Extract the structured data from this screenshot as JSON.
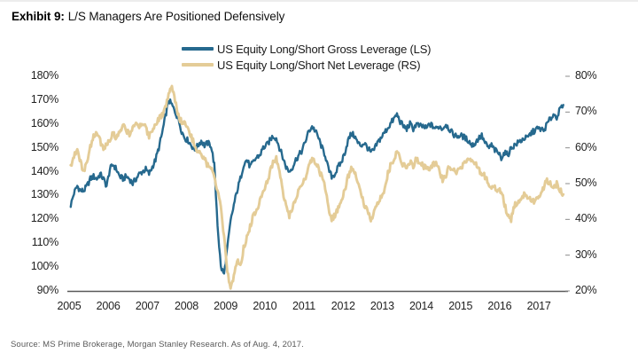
{
  "header": {
    "exhibit_label": "Exhibit 9:",
    "title": "L/S Managers Are Positioned Defensively"
  },
  "legend": [
    {
      "label": "US Equity Long/Short Gross Leverage (LS)",
      "color": "#26698E"
    },
    {
      "label": "US Equity Long/Short Net Leverage (RS)",
      "color": "#E4CC97"
    }
  ],
  "source": "Source: MS Prime Brokerage, Morgan Stanley Research. As of Aug. 4, 2017.",
  "colors": {
    "gross_line": "#26698E",
    "net_line": "#E4CC97",
    "axis_line": "#595959",
    "tick_text": "#1f1f1f"
  },
  "chart_data": {
    "type": "line",
    "title": "L/S Managers Are Positioned Defensively",
    "x_start_year": 2005,
    "x_step_months": 1,
    "x_end_label": "Aug 2017",
    "x_ticks": [
      "2005",
      "2006",
      "2007",
      "2008",
      "2009",
      "2010",
      "2011",
      "2012",
      "2013",
      "2014",
      "2015",
      "2016",
      "2017"
    ],
    "left_axis": {
      "label": "Gross Leverage (LS)",
      "ticks": [
        "180%",
        "170%",
        "160%",
        "150%",
        "140%",
        "130%",
        "120%",
        "110%",
        "100%",
        "90%"
      ],
      "min": 90,
      "max": 180
    },
    "right_axis": {
      "label": "Net Leverage (RS)",
      "ticks": [
        "80%",
        "70%",
        "60%",
        "50%",
        "40%",
        "30%",
        "20%"
      ],
      "min": 20,
      "max": 80
    },
    "grid": false,
    "legend_position": "top-center",
    "series": [
      {
        "name": "US Equity Long/Short Gross Leverage (LS)",
        "axis": "left",
        "color": "#26698E",
        "values": [
          126,
          131,
          134,
          132,
          132,
          134,
          137,
          138,
          137,
          139,
          137,
          134,
          141,
          143,
          141,
          138,
          137,
          138,
          137,
          135,
          137,
          139,
          140,
          141,
          139,
          142,
          145,
          150,
          156,
          163,
          170,
          168,
          165,
          162,
          157,
          154,
          153,
          151,
          149,
          151,
          153,
          151,
          152,
          151,
          143,
          118,
          100,
          97,
          108,
          119,
          126,
          132,
          137,
          143,
          145,
          142,
          144,
          146,
          147,
          150,
          151,
          153,
          155,
          154,
          150,
          146,
          142,
          140,
          142,
          145,
          147,
          149,
          153,
          157,
          159,
          157,
          154,
          150,
          147,
          141,
          138,
          139,
          142,
          144,
          148,
          153,
          156,
          155,
          152,
          151,
          152,
          150,
          148,
          149,
          152,
          154,
          156,
          158,
          160,
          162,
          164,
          161,
          159,
          158,
          160,
          158,
          160,
          159,
          159,
          158,
          160,
          159,
          158,
          159,
          158,
          160,
          158,
          156,
          155,
          155,
          155,
          154,
          153,
          151,
          152,
          154,
          155,
          152,
          150,
          151,
          149,
          148,
          146,
          148,
          147,
          150,
          151,
          152,
          153,
          154,
          154,
          156,
          157,
          158,
          158,
          157,
          160,
          162,
          164,
          163,
          166,
          168
        ]
      },
      {
        "name": "US Equity Long/Short Net Leverage (RS)",
        "axis": "right",
        "color": "#E4CC97",
        "values": [
          55,
          58,
          60,
          56,
          53,
          56,
          60,
          63,
          64,
          62,
          60,
          61,
          62,
          64,
          63,
          64,
          66,
          65,
          64,
          66,
          67,
          66,
          67,
          66,
          63,
          65,
          67,
          68,
          69,
          71,
          75,
          77,
          73,
          69,
          67,
          67,
          66,
          63,
          61,
          59,
          58,
          57,
          55,
          54,
          52,
          48,
          43,
          35,
          25,
          21,
          24,
          29,
          27,
          32,
          35,
          38,
          41,
          43,
          45,
          48,
          50,
          53,
          56,
          57,
          53,
          48,
          44,
          41,
          43,
          46,
          48,
          50,
          52,
          55,
          57,
          56,
          54,
          52,
          49,
          43,
          40,
          41,
          43,
          45,
          48,
          52,
          54,
          53,
          50,
          47,
          44,
          42,
          40,
          42,
          44,
          46,
          48,
          52,
          55,
          57,
          59,
          57,
          55,
          55,
          56,
          55,
          57,
          56,
          55,
          54,
          54,
          55,
          56,
          54,
          51,
          52,
          55,
          54,
          53,
          54,
          55,
          56,
          57,
          57,
          56,
          54,
          53,
          52,
          50,
          49,
          49,
          48,
          48,
          44,
          41,
          40,
          44,
          45,
          46,
          47,
          46,
          46,
          45,
          46,
          47,
          49,
          51,
          50,
          49,
          50,
          48,
          47
        ]
      }
    ]
  }
}
